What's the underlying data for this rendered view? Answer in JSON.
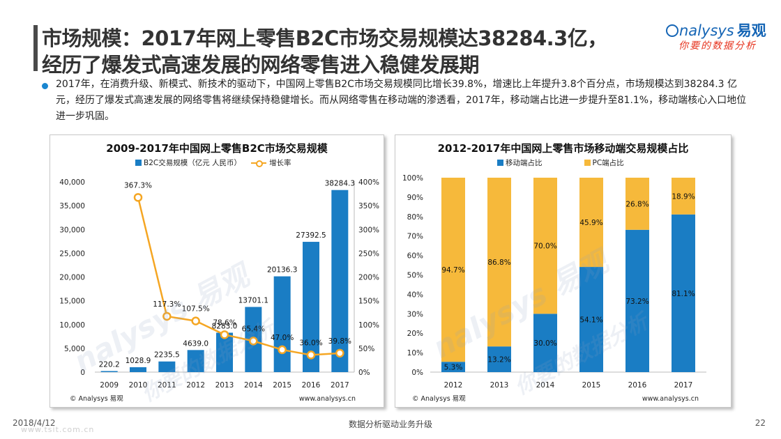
{
  "header": {
    "title_line1": "市场规模：2017年网上零售B2C市场交易规模达38284.3亿，",
    "title_line2": "经历了爆发式高速发展的网络零售进入稳健发展期"
  },
  "logo": {
    "brand": "nalysys",
    "brand_cn": "易观",
    "tagline": "你要的数据分析"
  },
  "bullet": "2017年，在消费升级、新模式、新技术的驱动下，中国网上零售B2C市场交易规模同比增长39.8%，增速比上年提升3.8个百分点，市场规模达到38284.3 亿元，经历了爆发式高速发展的网络零售将继续保持稳健增长。而从网络零售在移动端的渗透看，2017年，移动端占比进一步提升至81.1%，移动端核心入口地位进一步巩固。",
  "watermark": {
    "brand": "nalysys 易观",
    "tagline": "你要的数据分析"
  },
  "chart_left": {
    "footer_left": "© Analysys 易观",
    "footer_right": "www.analysys.cn"
  },
  "chart_right": {
    "footer_left": "© Analysys 易观",
    "footer_right": "www.analysys.cn"
  },
  "footer": {
    "date": "2018/4/12",
    "center": "数据分析驱动业务升级",
    "page": "22",
    "site": "www.tsit.com.cn"
  },
  "colors": {
    "bar_blue": "#1a7dc4",
    "line_orange": "#f5a623",
    "pc_yellow": "#f6b93b"
  },
  "chart_data": [
    {
      "type": "bar",
      "title": "2009-2017年中国网上零售B2C市场交易规模",
      "categories": [
        "2009",
        "2010",
        "2011",
        "2012",
        "2013",
        "2014",
        "2015",
        "2016",
        "2017"
      ],
      "series": [
        {
          "name": "B2C交易规模（亿元 人民币）",
          "type": "bar",
          "axis": "left",
          "values": [
            220.2,
            1028.9,
            2235.5,
            4639.0,
            8283.0,
            13701.1,
            20136.3,
            27392.5,
            38284.3
          ],
          "labels": [
            "220.2",
            "1028.9",
            "2235.5",
            "4639.0",
            "8283.0",
            "13701.1",
            "20136.3",
            "27392.5",
            "38284.3"
          ]
        },
        {
          "name": "增长率",
          "type": "line",
          "axis": "right",
          "values": [
            null,
            367.3,
            117.3,
            107.5,
            78.6,
            65.4,
            47.0,
            36.0,
            39.8
          ],
          "labels": [
            "",
            "367.3%",
            "117.3%",
            "107.5%",
            "78.6%",
            "65.4%",
            "47.0%",
            "36.0%",
            "39.8%"
          ]
        }
      ],
      "ylim": [
        0,
        40000
      ],
      "yticks": [
        "0",
        "5,000",
        "10,000",
        "15,000",
        "20,000",
        "25,000",
        "30,000",
        "35,000",
        "40,000"
      ],
      "y2lim": [
        0,
        400
      ],
      "y2ticks": [
        "0%",
        "50%",
        "100%",
        "150%",
        "200%",
        "250%",
        "300%",
        "350%",
        "400%"
      ],
      "legend": "top"
    },
    {
      "type": "bar",
      "stacked": true,
      "title": "2012-2017年中国网上零售市场移动端交易规模占比",
      "categories": [
        "2012",
        "2013",
        "2014",
        "2015",
        "2016",
        "2017"
      ],
      "series": [
        {
          "name": "移动端占比",
          "values": [
            5.3,
            13.2,
            30.0,
            54.1,
            73.2,
            81.1
          ],
          "labels": [
            "5.3%",
            "13.2%",
            "30.0%",
            "54.1%",
            "73.2%",
            "81.1%"
          ]
        },
        {
          "name": "PC端占比",
          "values": [
            94.7,
            86.8,
            70.0,
            45.9,
            26.8,
            18.9
          ],
          "labels": [
            "94.7%",
            "86.8%",
            "70.0%",
            "45.9%",
            "26.8%",
            "18.9%"
          ]
        }
      ],
      "ylim": [
        0,
        100
      ],
      "yticks": [
        "0%",
        "10%",
        "20%",
        "30%",
        "40%",
        "50%",
        "60%",
        "70%",
        "80%",
        "90%",
        "100%"
      ],
      "legend": "top"
    }
  ]
}
